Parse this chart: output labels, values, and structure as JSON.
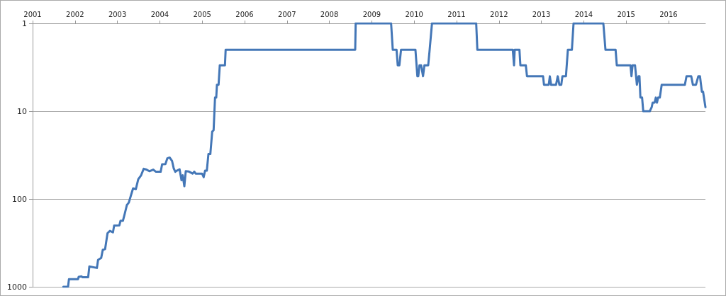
{
  "chart_data": {
    "type": "line",
    "x": [
      2001.724,
      2001.836,
      2001.857,
      2002.07,
      2002.087,
      2002.15,
      2002.178,
      2002.31,
      2002.338,
      2002.517,
      2002.544,
      2002.617,
      2002.655,
      2002.71,
      2002.767,
      2002.823,
      2002.895,
      2002.923,
      2003.045,
      2003.074,
      2003.13,
      2003.169,
      2003.224,
      2003.269,
      2003.324,
      2003.37,
      2003.436,
      2003.492,
      2003.559,
      2003.62,
      2003.687,
      2003.754,
      2003.843,
      2003.91,
      2004.02,
      2004.055,
      2004.132,
      2004.177,
      2004.232,
      2004.29,
      2004.328,
      2004.366,
      2004.424,
      2004.467,
      2004.512,
      2004.54,
      2004.579,
      2004.612,
      2004.69,
      2004.774,
      2004.813,
      2004.846,
      2004.997,
      2005.035,
      2005.068,
      2005.109,
      2005.147,
      2005.192,
      2005.236,
      2005.269,
      2005.303,
      2005.331,
      2005.348,
      2005.386,
      2005.415,
      2005.537,
      2005.553,
      2008.609,
      2008.62,
      2009.456,
      2009.495,
      2009.584,
      2009.612,
      2009.651,
      2009.69,
      2010.03,
      2010.075,
      2010.097,
      2010.125,
      2010.164,
      2010.209,
      2010.242,
      2010.331,
      2010.365,
      2010.42,
      2011.463,
      2011.49,
      2012.326,
      2012.355,
      2012.371,
      2012.483,
      2012.505,
      2012.633,
      2012.661,
      2013.04,
      2013.062,
      2013.174,
      2013.2,
      2013.23,
      2013.346,
      2013.386,
      2013.425,
      2013.47,
      2013.497,
      2013.58,
      2013.625,
      2013.72,
      2013.759,
      2014.462,
      2014.512,
      2014.751,
      2014.779,
      2015.102,
      2015.125,
      2015.152,
      2015.209,
      2015.253,
      2015.292,
      2015.314,
      2015.336,
      2015.376,
      2015.403,
      2015.558,
      2015.602,
      2015.625,
      2015.67,
      2015.699,
      2015.727,
      2015.754,
      2015.794,
      2015.838,
      2016.385,
      2016.423,
      2016.535,
      2016.574,
      2016.647,
      2016.702,
      2016.741,
      2016.786,
      2016.814,
      2016.87
    ],
    "series": [
      {
        "color": "#4477b7",
        "values": [
          1000,
          1000,
          820,
          820,
          771,
          760,
          780,
          780,
          587,
          610,
          494,
          470,
          379,
          372,
          245,
          231,
          240,
          201,
          200,
          177,
          177,
          150,
          117,
          110,
          89.5,
          75.7,
          77,
          59.5,
          53.7,
          45.3,
          46.3,
          48.3,
          46.3,
          49,
          49,
          40.3,
          40,
          34.5,
          33.7,
          37,
          44.8,
          49,
          47,
          46,
          61,
          53.7,
          71.6,
          48.3,
          48.8,
          51.4,
          48.8,
          51.4,
          51.4,
          56.5,
          47.6,
          47.6,
          30.8,
          30.8,
          17.1,
          16.5,
          7,
          7,
          5,
          5,
          3,
          3,
          2,
          2,
          1,
          1,
          2,
          2,
          3,
          3,
          2,
          2,
          4,
          4,
          3,
          3,
          4,
          3,
          3,
          2,
          1,
          1,
          2,
          2,
          3,
          2,
          2,
          3,
          3,
          4,
          4,
          5,
          5,
          4,
          5,
          5,
          4,
          5,
          5,
          4,
          4,
          2,
          2,
          1,
          1,
          2,
          2,
          3,
          3,
          4,
          3,
          3,
          5,
          4,
          4,
          7,
          7,
          10,
          10,
          9,
          8,
          8,
          7,
          8,
          7,
          7,
          5,
          5,
          4,
          4,
          5,
          5,
          4,
          4,
          6,
          6,
          9
        ]
      }
    ],
    "xlim": [
      2001,
      2016.87
    ],
    "xticks": [
      2001,
      2002,
      2003,
      2004,
      2005,
      2006,
      2007,
      2008,
      2009,
      2010,
      2011,
      2012,
      2013,
      2014,
      2015,
      2016
    ],
    "ylim": [
      1000,
      1
    ],
    "yticks": [
      1,
      10,
      100,
      1000
    ],
    "log": "y",
    "grid": "y",
    "marker": "none",
    "line_style": "solid"
  }
}
